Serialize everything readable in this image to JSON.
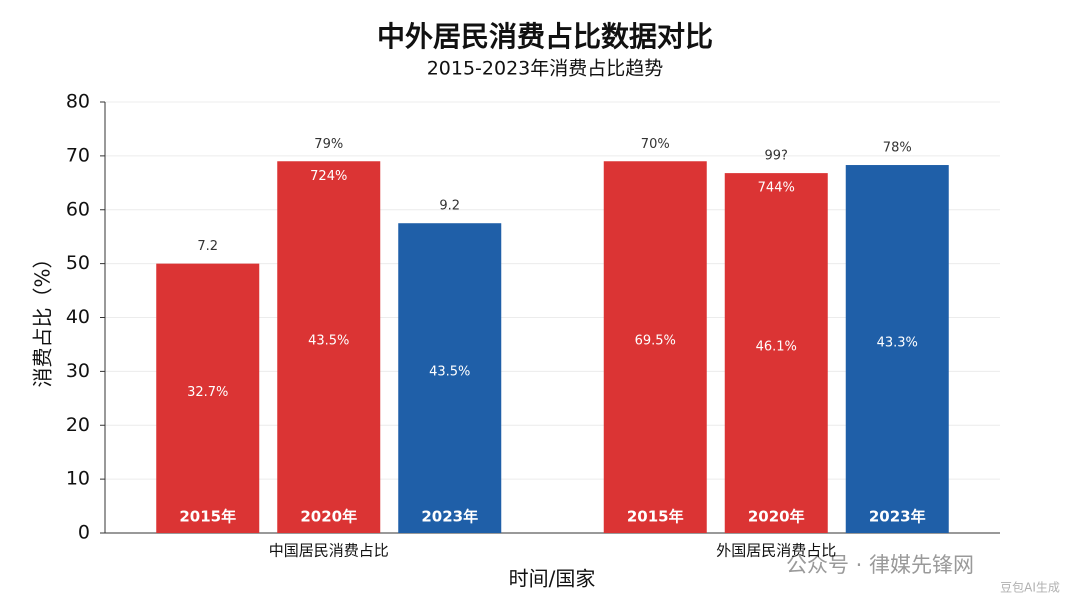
{
  "chart_data": {
    "type": "bar",
    "title": "中外居民消费占比数据对比",
    "subtitle": "2015-2023年消费占比趋势",
    "y_label": "消费占比（%）",
    "x_label": "时间/国家",
    "categories": [
      "中国居民消费占比",
      "外国居民消费占比"
    ],
    "series": [
      {
        "name": "2015年",
        "color": "#db3434",
        "values": [
          50,
          69
        ],
        "top_labels": [
          "7.2",
          "70%"
        ],
        "upper_labels": [
          null,
          null
        ],
        "inner_labels": [
          "32.7%",
          "69.5%"
        ]
      },
      {
        "name": "2020年",
        "color": "#db3434",
        "values": [
          69,
          66.8
        ],
        "top_labels": [
          "79%",
          "99?"
        ],
        "upper_labels": [
          "724%",
          "744%"
        ],
        "inner_labels": [
          "43.5%",
          "46.1%"
        ]
      },
      {
        "name": "2023年",
        "color": "#1f5fa8",
        "values": [
          57.5,
          68.3
        ],
        "top_labels": [
          "9.2",
          "78%"
        ],
        "upper_labels": [
          null,
          null
        ],
        "inner_labels": [
          "43.5%",
          "43.3%"
        ]
      }
    ],
    "ylim": [
      0,
      80
    ],
    "yticks": [
      0,
      10,
      20,
      30,
      40,
      50,
      60,
      70,
      80
    ],
    "grid": true,
    "watermark": "公众号 · 律媒先锋网",
    "ai_label": "豆包AI生成"
  }
}
